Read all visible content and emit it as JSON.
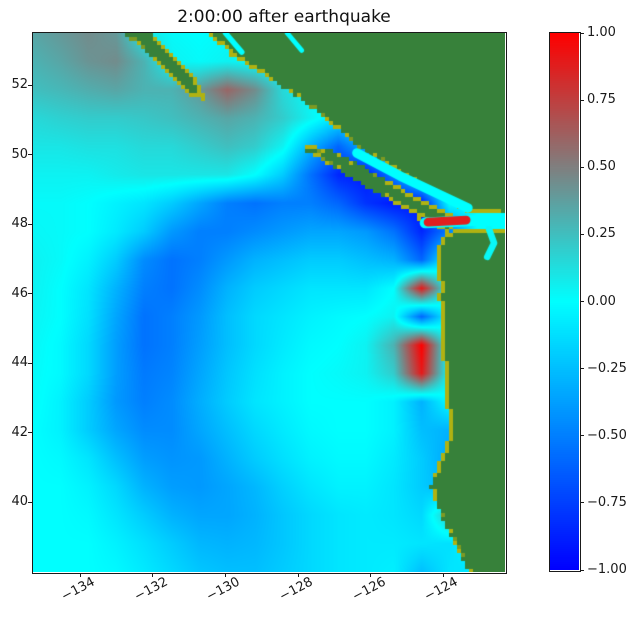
{
  "figure": {
    "title": "2:00:00 after earthquake"
  },
  "chart_data": {
    "type": "heatmap",
    "title": "2:00:00 after earthquake",
    "xlabel": "",
    "ylabel": "",
    "xlim": [
      -135.3,
      -122.3
    ],
    "ylim": [
      38.0,
      53.5
    ],
    "x_ticks": {
      "values": [
        -134,
        -132,
        -130,
        -128,
        -126,
        -124
      ],
      "labels": [
        "−134",
        "−132",
        "−130",
        "−128",
        "−126",
        "−124"
      ]
    },
    "y_ticks": {
      "values": [
        52,
        50,
        48,
        46,
        44,
        42,
        40
      ],
      "labels": [
        "52",
        "50",
        "48",
        "46",
        "44",
        "42",
        "40"
      ]
    },
    "colorbar": {
      "vmin": -1,
      "vmax": 1,
      "tick_values": [
        1.0,
        0.75,
        0.5,
        0.25,
        0.0,
        -0.25,
        -0.5,
        -0.75,
        -1.0
      ],
      "tick_labels": [
        "1.00",
        "0.75",
        "0.50",
        "0.25",
        "0.00",
        "−0.25",
        "−0.50",
        "−0.75",
        "−1.00"
      ]
    },
    "colormap_stops": [
      [
        -1,
        "#0000ff"
      ],
      [
        0,
        "#00ffff"
      ],
      [
        1,
        "#ff0000"
      ]
    ],
    "land_color": "#37813a",
    "land_edge_colors": [
      "#b0b212",
      "#7d9a22"
    ],
    "grid": {
      "ncols": 18,
      "nrows": 20,
      "values": [
        [
          0.35,
          0.4,
          0.45,
          0.4,
          0.1,
          0.02,
          0.0,
          0.02,
          0.0,
          0.0,
          0.0,
          0.0,
          0.0,
          0.0,
          0.0,
          0.0,
          0.0,
          0.0
        ],
        [
          0.3,
          0.35,
          0.42,
          0.45,
          0.3,
          0.05,
          0.02,
          0.05,
          0.02,
          0.0,
          0.0,
          0.0,
          0.0,
          0.0,
          0.0,
          0.0,
          0.0,
          0.0
        ],
        [
          0.25,
          0.28,
          0.32,
          0.35,
          0.3,
          0.3,
          0.4,
          0.6,
          0.45,
          0.15,
          0.02,
          0.0,
          0.0,
          0.0,
          0.0,
          0.0,
          0.0,
          0.0
        ],
        [
          0.15,
          0.18,
          0.2,
          0.2,
          0.22,
          0.25,
          0.3,
          0.35,
          0.3,
          0.2,
          0.05,
          -0.1,
          0.0,
          0.0,
          0.0,
          0.0,
          0.0,
          0.0
        ],
        [
          0.1,
          0.1,
          0.12,
          0.12,
          0.15,
          0.15,
          0.2,
          0.25,
          0.2,
          0.05,
          -0.3,
          -0.6,
          -0.3,
          0.0,
          0.0,
          0.0,
          0.0,
          0.0
        ],
        [
          0.05,
          0.05,
          0.05,
          0.08,
          0.1,
          0.1,
          0.1,
          0.1,
          0.0,
          -0.2,
          -0.55,
          -0.85,
          -0.9,
          -0.5,
          0.0,
          0.0,
          0.0,
          0.0
        ],
        [
          0.02,
          0.02,
          0.0,
          -0.05,
          -0.1,
          -0.2,
          -0.35,
          -0.5,
          -0.55,
          -0.5,
          -0.5,
          -0.6,
          -0.8,
          -0.9,
          -0.9,
          0.0,
          0.0,
          0.0
        ],
        [
          0.03,
          0.02,
          0.0,
          -0.08,
          -0.2,
          -0.4,
          -0.5,
          -0.5,
          -0.45,
          -0.4,
          -0.35,
          -0.35,
          -0.4,
          -0.55,
          -0.85,
          -0.5,
          0.0,
          0.0
        ],
        [
          0.05,
          0.02,
          -0.05,
          -0.2,
          -0.45,
          -0.55,
          -0.5,
          -0.4,
          -0.3,
          -0.25,
          -0.2,
          -0.2,
          -0.25,
          -0.3,
          -0.6,
          0.0,
          0.0,
          0.0
        ],
        [
          0.05,
          0.0,
          -0.1,
          -0.3,
          -0.5,
          -0.55,
          -0.45,
          -0.3,
          -0.2,
          -0.15,
          -0.1,
          -0.1,
          -0.1,
          0.0,
          0.9,
          0.0,
          0.0,
          0.0
        ],
        [
          0.04,
          0.0,
          -0.12,
          -0.35,
          -0.55,
          -0.5,
          -0.4,
          -0.25,
          -0.15,
          -0.1,
          -0.05,
          -0.02,
          0.0,
          0.05,
          -0.6,
          0.0,
          0.0,
          0.0
        ],
        [
          0.03,
          -0.02,
          -0.15,
          -0.38,
          -0.55,
          -0.5,
          -0.38,
          -0.25,
          -0.15,
          -0.08,
          -0.02,
          0.0,
          0.05,
          0.3,
          1.0,
          0.0,
          0.0,
          0.0
        ],
        [
          0.02,
          -0.02,
          -0.15,
          -0.38,
          -0.52,
          -0.48,
          -0.35,
          -0.22,
          -0.12,
          -0.05,
          0.0,
          0.02,
          0.05,
          0.2,
          0.9,
          0.0,
          0.0,
          0.0
        ],
        [
          0.02,
          -0.05,
          -0.2,
          -0.4,
          -0.5,
          -0.45,
          -0.32,
          -0.2,
          -0.1,
          -0.05,
          0.0,
          0.0,
          0.0,
          -0.05,
          -0.3,
          0.0,
          0.0,
          0.0
        ],
        [
          0.0,
          -0.05,
          -0.2,
          -0.35,
          -0.45,
          -0.45,
          -0.35,
          -0.25,
          -0.15,
          -0.08,
          -0.02,
          0.0,
          0.0,
          -0.05,
          -0.25,
          -0.3,
          0.0,
          0.0
        ],
        [
          0.0,
          -0.02,
          -0.1,
          -0.25,
          -0.38,
          -0.42,
          -0.4,
          -0.3,
          -0.2,
          -0.12,
          -0.05,
          -0.02,
          -0.02,
          -0.08,
          -0.2,
          -0.35,
          0.0,
          0.0
        ],
        [
          0.0,
          0.0,
          -0.05,
          -0.15,
          -0.3,
          -0.38,
          -0.4,
          -0.35,
          -0.28,
          -0.18,
          -0.1,
          -0.05,
          -0.05,
          -0.1,
          -0.2,
          -0.3,
          0.0,
          0.0
        ],
        [
          0.0,
          0.0,
          -0.02,
          -0.1,
          -0.2,
          -0.3,
          -0.35,
          -0.35,
          -0.3,
          -0.22,
          -0.15,
          -0.1,
          -0.08,
          -0.1,
          -0.15,
          0.25,
          0.0,
          0.0
        ],
        [
          0.0,
          0.0,
          0.0,
          -0.05,
          -0.12,
          -0.2,
          -0.28,
          -0.3,
          -0.28,
          -0.22,
          -0.15,
          -0.1,
          -0.08,
          -0.08,
          -0.1,
          -0.12,
          0.0,
          0.0
        ],
        [
          0.0,
          0.0,
          0.0,
          -0.02,
          -0.08,
          -0.15,
          -0.22,
          -0.25,
          -0.25,
          -0.2,
          -0.15,
          -0.1,
          -0.08,
          -0.06,
          -0.25,
          -0.1,
          -0.1,
          0.0
        ]
      ]
    },
    "land_polygons": [
      {
        "name": "mainland-bc",
        "points": [
          [
            -130.56,
            53.5
          ],
          [
            -129.6,
            52.72
          ],
          [
            -128.22,
            51.8
          ],
          [
            -127.62,
            51.34
          ],
          [
            -126.24,
            50.14
          ],
          [
            -124.59,
            49.07
          ],
          [
            -123.32,
            48.35
          ],
          [
            -122.3,
            48.27
          ],
          [
            -122.3,
            53.5
          ]
        ]
      },
      {
        "name": "haida-gwaii",
        "points": [
          [
            -132.82,
            53.5
          ],
          [
            -132.02,
            53.5
          ],
          [
            -130.76,
            52.09
          ],
          [
            -130.48,
            51.52
          ],
          [
            -131.03,
            51.72
          ],
          [
            -132.13,
            52.9
          ]
        ]
      },
      {
        "name": "vancouver-island",
        "points": [
          [
            -127.81,
            50.34
          ],
          [
            -126.9,
            50.05
          ],
          [
            -125.8,
            49.42
          ],
          [
            -124.42,
            48.61
          ],
          [
            -123.46,
            48.09
          ],
          [
            -123.9,
            47.75
          ],
          [
            -124.78,
            48.3
          ],
          [
            -125.96,
            48.96
          ],
          [
            -127.12,
            49.7
          ],
          [
            -127.86,
            50.14
          ]
        ]
      },
      {
        "name": "washington-oregon-california-coast",
        "points": [
          [
            -122.3,
            47.86
          ],
          [
            -123.32,
            47.89
          ],
          [
            -123.93,
            47.75
          ],
          [
            -124.17,
            47.35
          ],
          [
            -124.2,
            46.63
          ],
          [
            -124.04,
            46.17
          ],
          [
            -124.23,
            45.94
          ],
          [
            -124.06,
            45.68
          ],
          [
            -124.01,
            44.96
          ],
          [
            -124.06,
            44.33
          ],
          [
            -123.95,
            43.67
          ],
          [
            -124.01,
            43.03
          ],
          [
            -123.81,
            42.51
          ],
          [
            -123.87,
            41.79
          ],
          [
            -124.14,
            41.08
          ],
          [
            -124.36,
            40.41
          ],
          [
            -124.17,
            39.93
          ],
          [
            -124.03,
            39.49
          ],
          [
            -123.76,
            38.92
          ],
          [
            -123.48,
            38.4
          ],
          [
            -123.32,
            38.0
          ],
          [
            -122.3,
            38.0
          ]
        ]
      }
    ],
    "islands": [
      [
        -130.2,
        53.2
      ],
      [
        -129.8,
        52.85
      ],
      [
        -131.05,
        51.95
      ],
      [
        -124.7,
        48.2
      ],
      [
        -122.9,
        48.62
      ],
      [
        -122.95,
        47.0
      ],
      [
        -124.05,
        46.02
      ]
    ],
    "channels": [
      {
        "name": "strait-of-georgia",
        "value": 0.0,
        "width_deg": 0.26,
        "points": [
          [
            -126.38,
            50.05
          ],
          [
            -125.19,
            49.39
          ],
          [
            -123.32,
            48.47
          ]
        ]
      },
      {
        "name": "north-coast-inlet-1",
        "value": 0.0,
        "width_deg": 0.15,
        "points": [
          [
            -130.0,
            53.5
          ],
          [
            -129.55,
            52.95
          ]
        ]
      },
      {
        "name": "north-coast-inlet-2",
        "value": 0.0,
        "width_deg": 0.13,
        "points": [
          [
            -128.3,
            53.5
          ],
          [
            -127.9,
            53.0
          ]
        ]
      },
      {
        "name": "strait-of-juan-de-fuca",
        "value": 0.0,
        "width_deg": 0.3,
        "points": [
          [
            -124.5,
            48.04
          ],
          [
            -122.3,
            48.15
          ]
        ]
      },
      {
        "name": "juan-de-fuca-red-segment",
        "value": 0.88,
        "width_deg": 0.24,
        "points": [
          [
            -124.42,
            48.06
          ],
          [
            -123.37,
            48.12
          ]
        ]
      },
      {
        "name": "puget-sound",
        "value": 0.03,
        "width_deg": 0.18,
        "points": [
          [
            -122.74,
            47.86
          ],
          [
            -122.6,
            47.46
          ],
          [
            -122.79,
            47.06
          ]
        ]
      }
    ]
  }
}
